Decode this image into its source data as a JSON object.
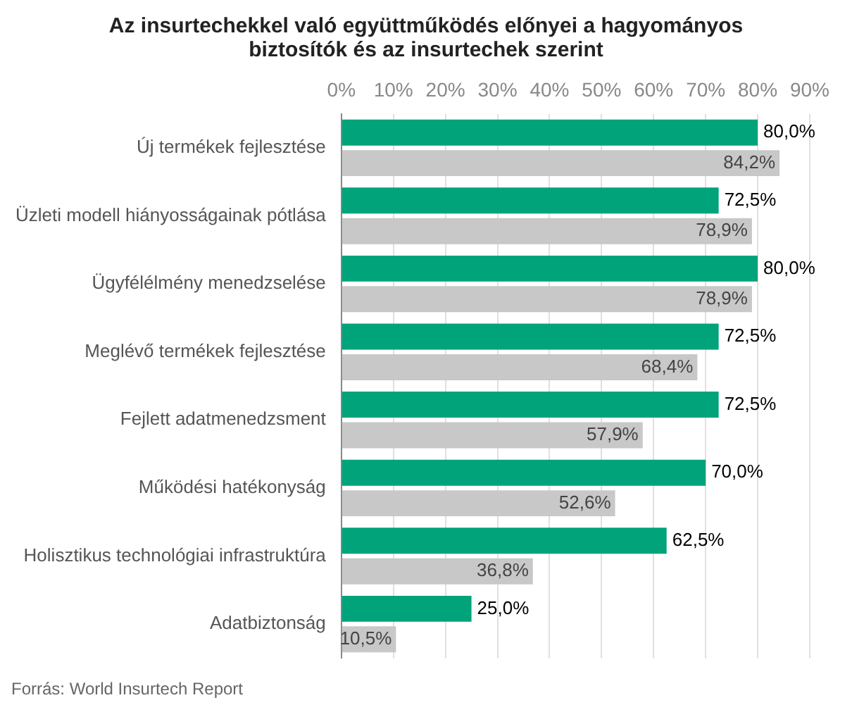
{
  "chart_data": {
    "type": "bar",
    "orientation": "horizontal",
    "title": "Az insurtechekkel való együttműködés előnyei a hagyományos biztosítók és az insurtechek szerint",
    "categories": [
      "Új termékek fejlesztése",
      "Üzleti modell hiányosságainak pótlása",
      "Ügyfélélmény menedzselése",
      "Meglévő termékek fejlesztése",
      "Fejlett adatmenedzsment",
      "Működési hatékonyság",
      "Holisztikus technológiai infrastruktúra",
      "Adatbiztonság"
    ],
    "series": [
      {
        "color": "#00a37a",
        "values": [
          80.0,
          72.5,
          80.0,
          72.5,
          72.5,
          70.0,
          62.5,
          25.0
        ],
        "value_labels": [
          "80,0%",
          "72,5%",
          "80,0%",
          "72,5%",
          "72,5%",
          "70,0%",
          "62,5%",
          "25,0%"
        ]
      },
      {
        "color": "#c8c8c8",
        "values": [
          84.2,
          78.9,
          78.9,
          68.4,
          57.9,
          52.6,
          36.8,
          10.5
        ],
        "value_labels": [
          "84,2%",
          "78,9%",
          "78,9%",
          "68,4%",
          "57,9%",
          "52,6%",
          "36,8%",
          "10,5%"
        ]
      }
    ],
    "xlim": [
      0,
      90
    ],
    "xticks": [
      {
        "value": 0,
        "label": "0%"
      },
      {
        "value": 10,
        "label": "10%"
      },
      {
        "value": 20,
        "label": "20%"
      },
      {
        "value": 30,
        "label": "30%"
      },
      {
        "value": 40,
        "label": "40%"
      },
      {
        "value": 50,
        "label": "50%"
      },
      {
        "value": 60,
        "label": "60%"
      },
      {
        "value": 70,
        "label": "70%"
      },
      {
        "value": 80,
        "label": "80%"
      },
      {
        "value": 90,
        "label": "90%"
      }
    ],
    "grid": "x",
    "annotations": [
      "Forrás: World Insurtech Report"
    ]
  }
}
